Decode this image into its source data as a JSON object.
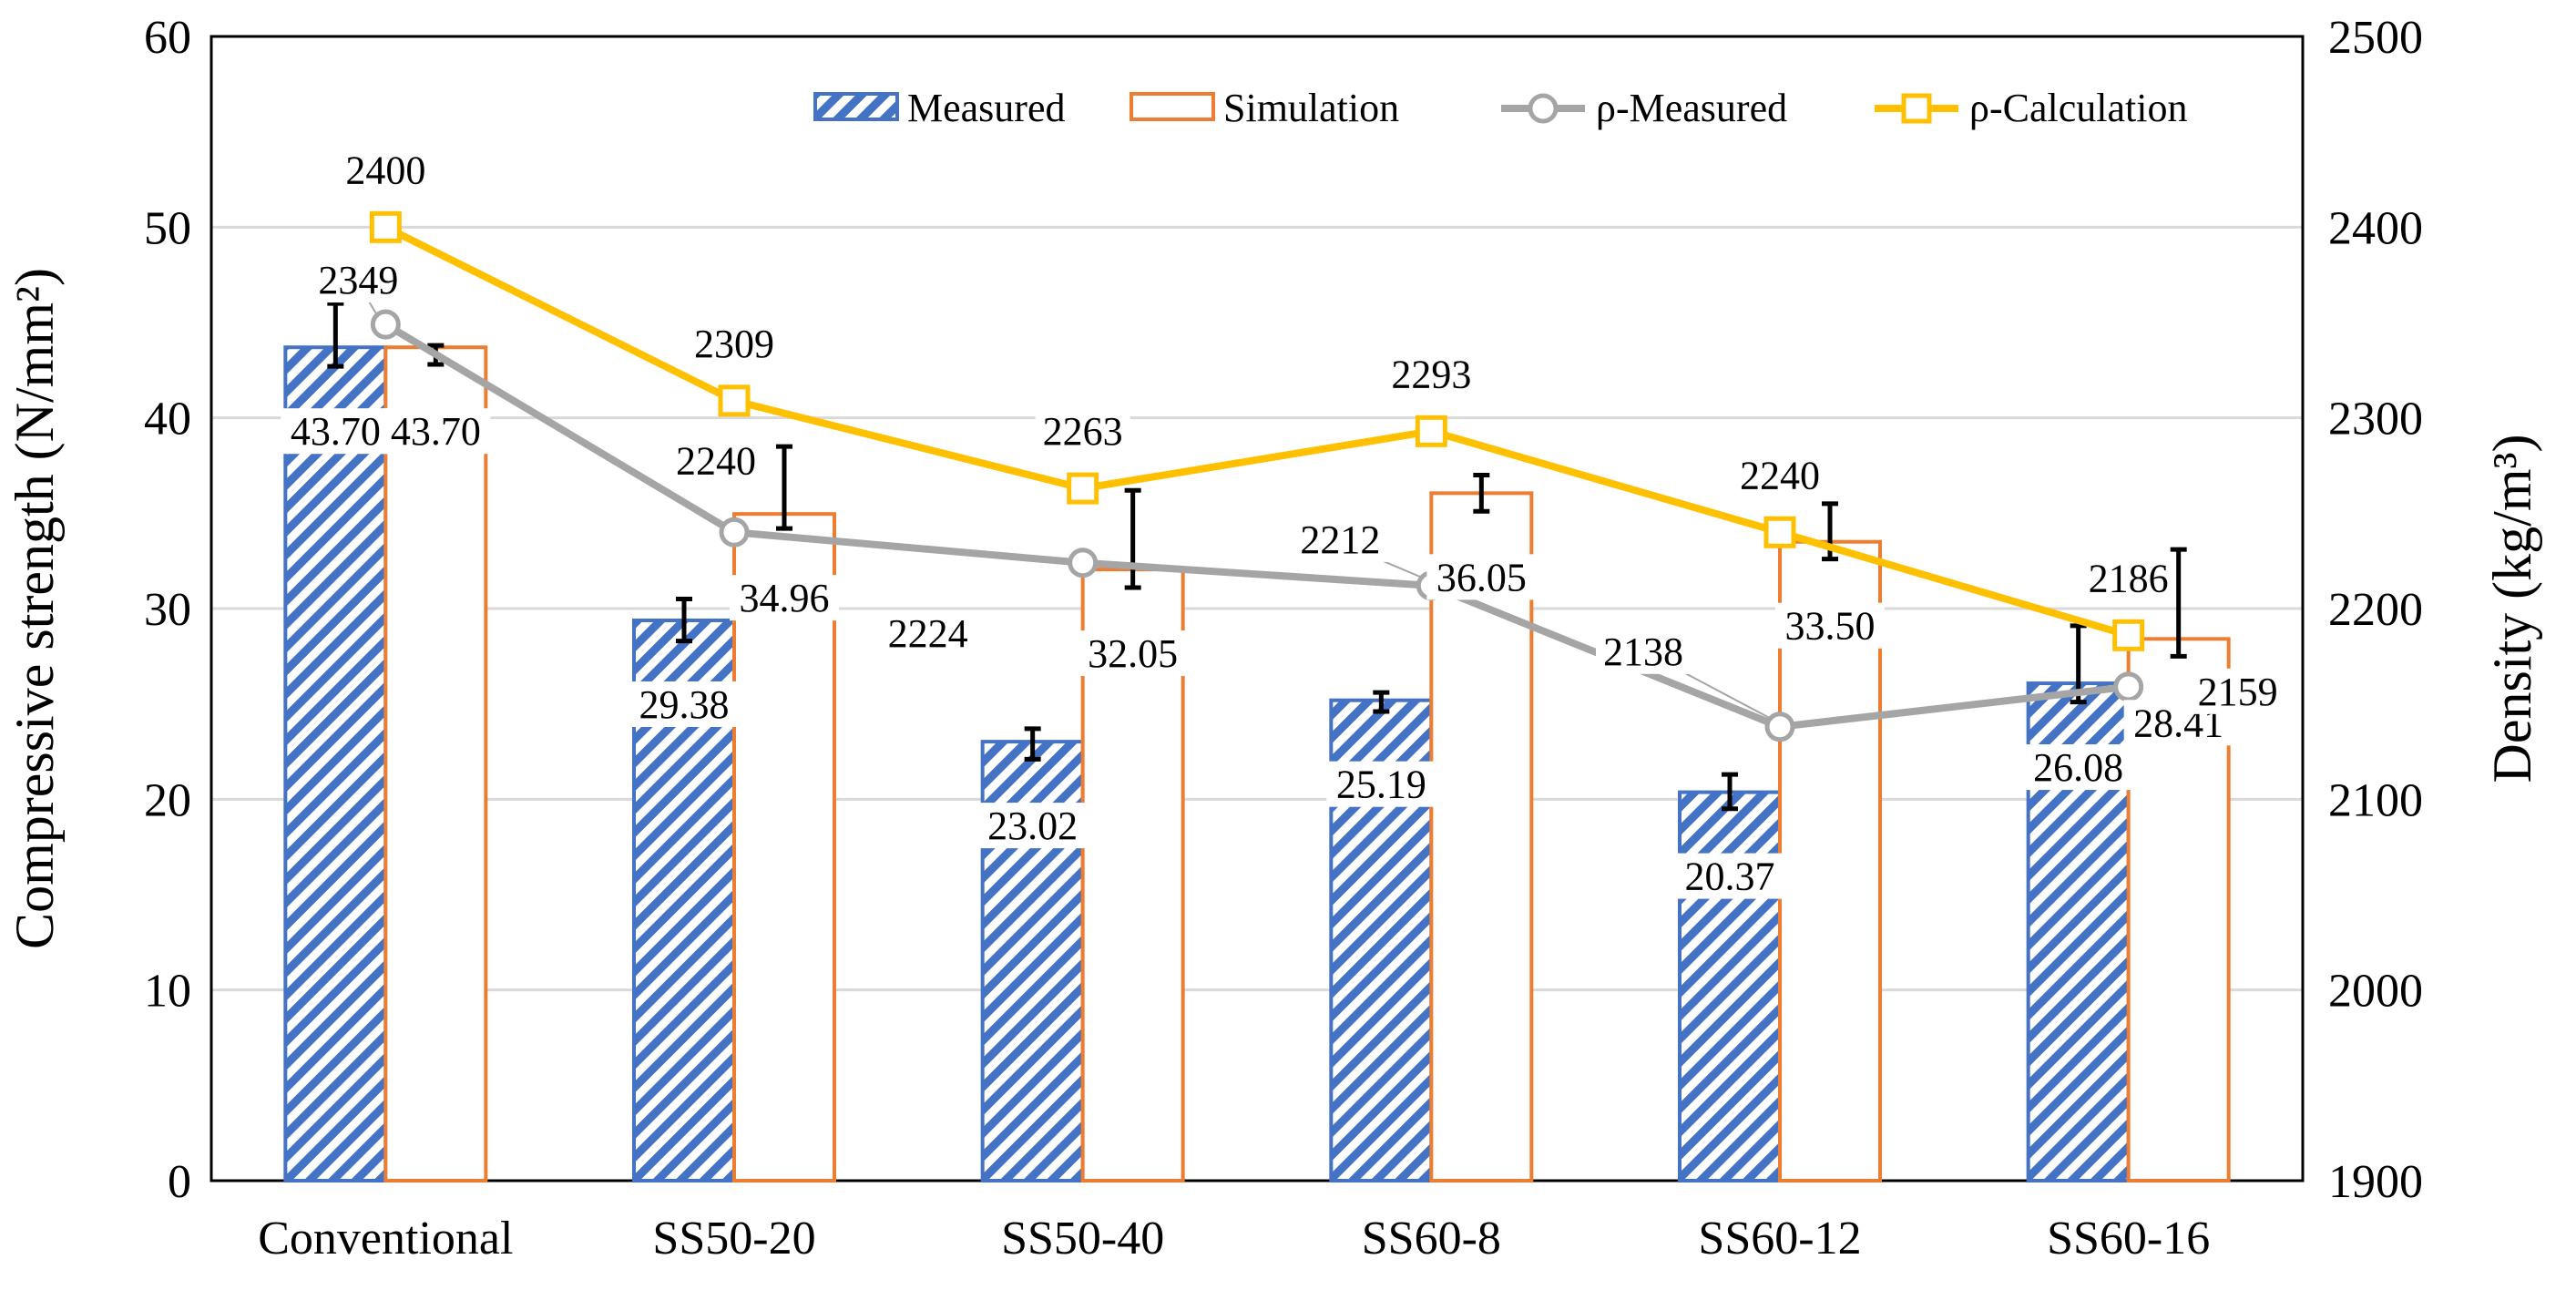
{
  "chart_data": {
    "type": "bar",
    "categories": [
      "Conventional",
      "SS50-20",
      "SS50-40",
      "SS60-8",
      "SS60-12",
      "SS60-16"
    ],
    "series": [
      {
        "name": "Measured",
        "kind": "bar",
        "axis": "left",
        "style": "hatched",
        "color": "#4472C4",
        "values": [
          43.7,
          29.38,
          23.02,
          25.19,
          20.37,
          26.08
        ],
        "value_labels": [
          "43.70",
          "29.38",
          "23.02",
          "25.19",
          "20.37",
          "26.08"
        ],
        "error_low": [
          42.7,
          28.3,
          22.1,
          24.6,
          19.5,
          25.1
        ],
        "error_high": [
          46.0,
          30.5,
          23.7,
          25.6,
          21.3,
          29.1
        ]
      },
      {
        "name": "Simulation",
        "kind": "bar",
        "axis": "left",
        "style": "outline",
        "color": "#ED7D31",
        "values": [
          43.7,
          34.96,
          32.05,
          36.05,
          33.5,
          28.41
        ],
        "value_labels": [
          "43.70",
          "34.96",
          "32.05",
          "36.05",
          "33.50",
          "28.41"
        ],
        "error_low": [
          42.8,
          34.2,
          31.1,
          35.1,
          32.6,
          27.5
        ],
        "error_high": [
          43.8,
          38.5,
          36.2,
          37.0,
          35.5,
          33.1
        ]
      },
      {
        "name": "ρ-Measured",
        "kind": "line",
        "axis": "right",
        "marker": "circle",
        "color": "#A5A5A5",
        "values": [
          2349,
          2240,
          2224,
          2212,
          2138,
          2159
        ],
        "value_labels": [
          "2349",
          "2240",
          "2224",
          "2212",
          "2138",
          "2159"
        ]
      },
      {
        "name": "ρ-Calculation",
        "kind": "line",
        "axis": "right",
        "marker": "square",
        "color": "#FFC000",
        "values": [
          2400,
          2309,
          2263,
          2293,
          2240,
          2186
        ],
        "value_labels": [
          "2400",
          "2309",
          "2263",
          "2293",
          "2240",
          "2186"
        ]
      }
    ],
    "ylabel": "Compressive strength (N/mm²)",
    "ylabel_right": "Density (kg/m³)",
    "ylim": [
      0,
      60
    ],
    "ylim_right": [
      1900,
      2500
    ],
    "yticks": [
      0,
      10,
      20,
      30,
      40,
      50,
      60
    ],
    "yticks_right": [
      1900,
      2000,
      2100,
      2200,
      2300,
      2400,
      2500
    ],
    "grid": true,
    "legend_position": "top"
  }
}
